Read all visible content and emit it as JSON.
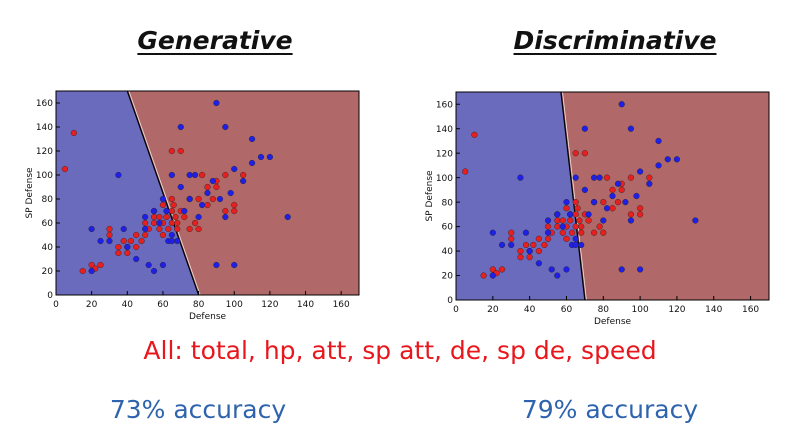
{
  "titles": {
    "left": "Generative",
    "right": "Discriminative"
  },
  "features_line": "All: total, hp, att, sp att, de, sp de, speed",
  "accuracy": {
    "left": "73% accuracy",
    "right": "79% accuracy"
  },
  "colors": {
    "region_blue": "#6b6bbd",
    "region_red": "#b06868",
    "point_blue": "#1f1fe8",
    "point_red": "#e81f1f",
    "title_color": "#111111",
    "features_color": "#e8171d",
    "accuracy_color": "#2e63ad"
  },
  "chart_data": [
    {
      "type": "scatter",
      "title": "Generative",
      "xlabel": "Defense",
      "ylabel": "SP Defense",
      "xlim": [
        0,
        170
      ],
      "ylim": [
        0,
        170
      ],
      "xticks": [
        0,
        20,
        40,
        60,
        80,
        100,
        120,
        140,
        160
      ],
      "yticks": [
        0,
        20,
        40,
        60,
        80,
        100,
        120,
        140,
        160
      ],
      "grid": false,
      "decision_boundary": [
        [
          40,
          170
        ],
        [
          80,
          0
        ]
      ],
      "regions": [
        {
          "side": "left",
          "color": "blue"
        },
        {
          "side": "right",
          "color": "red"
        }
      ],
      "series": [
        {
          "color": "red",
          "x": [
            5,
            10,
            15,
            20,
            22,
            25,
            30,
            30,
            35,
            35,
            38,
            40,
            40,
            42,
            45,
            45,
            48,
            50,
            50,
            52,
            55,
            55,
            55,
            58,
            58,
            60,
            60,
            60,
            62,
            62,
            63,
            65,
            65,
            65,
            65,
            66,
            67,
            68,
            68,
            70,
            70,
            72,
            75,
            75,
            78,
            80,
            80,
            82,
            85,
            85,
            88,
            90,
            90,
            95,
            95,
            100,
            100,
            105
          ],
          "y": [
            105,
            135,
            20,
            25,
            22,
            25,
            50,
            55,
            40,
            35,
            45,
            35,
            40,
            45,
            50,
            40,
            45,
            60,
            50,
            55,
            70,
            60,
            65,
            55,
            65,
            60,
            50,
            75,
            65,
            70,
            55,
            60,
            70,
            80,
            120,
            75,
            65,
            60,
            55,
            120,
            70,
            65,
            80,
            55,
            60,
            55,
            80,
            100,
            90,
            75,
            80,
            90,
            95,
            100,
            70,
            75,
            70,
            100
          ]
        },
        {
          "color": "blue",
          "x": [
            20,
            20,
            25,
            30,
            35,
            38,
            40,
            45,
            50,
            50,
            52,
            55,
            55,
            58,
            60,
            60,
            62,
            63,
            65,
            65,
            65,
            68,
            70,
            70,
            72,
            75,
            75,
            78,
            80,
            82,
            85,
            88,
            90,
            90,
            92,
            95,
            95,
            98,
            100,
            100,
            105,
            110,
            110,
            115,
            120,
            130
          ],
          "y": [
            20,
            55,
            45,
            45,
            100,
            55,
            40,
            30,
            55,
            65,
            25,
            20,
            70,
            60,
            80,
            25,
            70,
            45,
            50,
            100,
            45,
            45,
            90,
            140,
            70,
            100,
            80,
            100,
            65,
            75,
            85,
            95,
            160,
            25,
            80,
            140,
            65,
            85,
            25,
            105,
            95,
            130,
            110,
            115,
            115,
            65
          ]
        }
      ]
    },
    {
      "type": "scatter",
      "title": "Discriminative",
      "xlabel": "Defense",
      "ylabel": "SP Defense",
      "xlim": [
        0,
        170
      ],
      "ylim": [
        0,
        170
      ],
      "xticks": [
        0,
        20,
        40,
        60,
        80,
        100,
        120,
        140,
        160
      ],
      "yticks": [
        0,
        20,
        40,
        60,
        80,
        100,
        120,
        140,
        160
      ],
      "grid": false,
      "decision_boundary": [
        [
          57,
          170
        ],
        [
          70,
          0
        ]
      ],
      "regions": [
        {
          "side": "left",
          "color": "blue"
        },
        {
          "side": "right",
          "color": "red"
        }
      ],
      "series": [
        {
          "color": "red",
          "x": [
            5,
            10,
            15,
            20,
            22,
            25,
            30,
            30,
            35,
            35,
            38,
            40,
            40,
            42,
            45,
            45,
            48,
            50,
            50,
            52,
            55,
            55,
            55,
            58,
            58,
            60,
            60,
            60,
            62,
            62,
            63,
            65,
            65,
            65,
            65,
            66,
            67,
            68,
            68,
            70,
            70,
            72,
            75,
            75,
            78,
            80,
            80,
            82,
            85,
            85,
            88,
            90,
            90,
            95,
            95,
            100,
            100,
            105
          ],
          "y": [
            105,
            135,
            20,
            25,
            22,
            25,
            50,
            55,
            40,
            35,
            45,
            35,
            40,
            45,
            50,
            40,
            45,
            60,
            50,
            55,
            70,
            60,
            65,
            55,
            65,
            60,
            50,
            75,
            65,
            70,
            55,
            60,
            70,
            80,
            120,
            75,
            65,
            60,
            55,
            120,
            70,
            65,
            80,
            55,
            60,
            55,
            80,
            100,
            90,
            75,
            80,
            90,
            95,
            100,
            70,
            75,
            70,
            100
          ]
        },
        {
          "color": "blue",
          "x": [
            20,
            20,
            25,
            30,
            35,
            38,
            40,
            45,
            50,
            50,
            52,
            55,
            55,
            58,
            60,
            60,
            62,
            63,
            65,
            65,
            65,
            68,
            70,
            70,
            72,
            75,
            75,
            78,
            80,
            82,
            85,
            88,
            90,
            90,
            92,
            95,
            95,
            98,
            100,
            100,
            105,
            110,
            110,
            115,
            120,
            130
          ],
          "y": [
            20,
            55,
            45,
            45,
            100,
            55,
            40,
            30,
            55,
            65,
            25,
            20,
            70,
            60,
            80,
            25,
            70,
            45,
            50,
            100,
            45,
            45,
            90,
            140,
            70,
            100,
            80,
            100,
            65,
            75,
            85,
            95,
            160,
            25,
            80,
            140,
            65,
            85,
            25,
            105,
            95,
            130,
            110,
            115,
            115,
            65
          ]
        }
      ]
    }
  ]
}
